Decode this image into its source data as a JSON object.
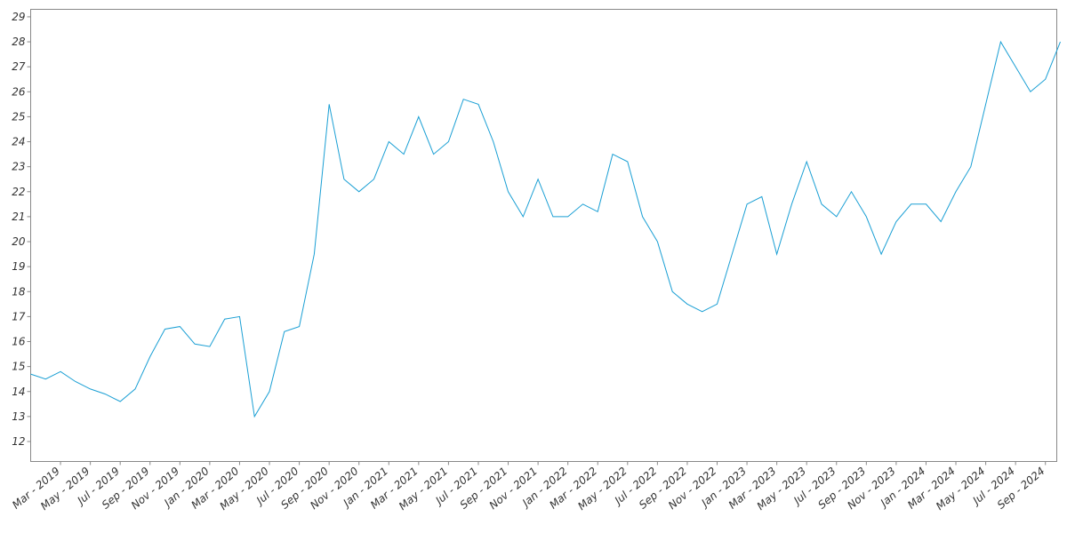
{
  "chart_data": {
    "type": "line",
    "x": [
      "2019-01",
      "2019-02",
      "2019-03",
      "2019-04",
      "2019-05",
      "2019-06",
      "2019-07",
      "2019-08",
      "2019-09",
      "2019-10",
      "2019-11",
      "2019-12",
      "2020-01",
      "2020-02",
      "2020-03",
      "2020-04",
      "2020-05",
      "2020-06",
      "2020-07",
      "2020-08",
      "2020-09",
      "2020-10",
      "2020-11",
      "2020-12",
      "2021-01",
      "2021-02",
      "2021-03",
      "2021-04",
      "2021-05",
      "2021-06",
      "2021-07",
      "2021-08",
      "2021-09",
      "2021-10",
      "2021-11",
      "2021-12",
      "2022-01",
      "2022-02",
      "2022-03",
      "2022-04",
      "2022-05",
      "2022-06",
      "2022-07",
      "2022-08",
      "2022-09",
      "2022-10",
      "2022-11",
      "2022-12",
      "2023-01",
      "2023-02",
      "2023-03",
      "2023-04",
      "2023-05",
      "2023-06",
      "2023-07",
      "2023-08",
      "2023-09",
      "2023-10",
      "2023-11",
      "2023-12",
      "2024-01",
      "2024-02",
      "2024-03",
      "2024-04",
      "2024-05",
      "2024-06",
      "2024-07",
      "2024-08",
      "2024-09",
      "2024-10"
    ],
    "series": [
      {
        "color": "#1a9fd4",
        "values": [
          14.7,
          14.5,
          14.8,
          14.4,
          14.1,
          13.9,
          13.6,
          14.1,
          15.4,
          16.5,
          16.6,
          15.9,
          15.8,
          16.9,
          17.0,
          13.0,
          14.0,
          16.4,
          16.6,
          19.5,
          25.5,
          22.5,
          22.0,
          22.5,
          24.0,
          23.5,
          25.0,
          23.5,
          24.0,
          25.7,
          25.5,
          24.0,
          22.0,
          21.0,
          22.5,
          21.0,
          21.0,
          21.5,
          21.2,
          23.5,
          23.2,
          21.0,
          20.0,
          18.0,
          17.5,
          17.2,
          17.5,
          19.5,
          21.5,
          21.8,
          19.5,
          21.5,
          23.2,
          21.5,
          21.0,
          22.0,
          21.0,
          19.5,
          20.8,
          21.5,
          21.5,
          20.8,
          22.0,
          23.0,
          25.5,
          28.0,
          27.0,
          26.0,
          26.5,
          28.0
        ]
      }
    ],
    "xlim": [
      "2019-01",
      "2024-10"
    ],
    "xticks": [
      {
        "value": "2019-03",
        "label": "Mar - 2019"
      },
      {
        "value": "2019-05",
        "label": "May - 2019"
      },
      {
        "value": "2019-07",
        "label": "Jul - 2019"
      },
      {
        "value": "2019-09",
        "label": "Sep - 2019"
      },
      {
        "value": "2019-11",
        "label": "Nov - 2019"
      },
      {
        "value": "2020-01",
        "label": "Jan - 2020"
      },
      {
        "value": "2020-03",
        "label": "Mar - 2020"
      },
      {
        "value": "2020-05",
        "label": "May - 2020"
      },
      {
        "value": "2020-07",
        "label": "Jul - 2020"
      },
      {
        "value": "2020-09",
        "label": "Sep - 2020"
      },
      {
        "value": "2020-11",
        "label": "Nov - 2020"
      },
      {
        "value": "2021-01",
        "label": "Jan - 2021"
      },
      {
        "value": "2021-03",
        "label": "Mar - 2021"
      },
      {
        "value": "2021-05",
        "label": "May - 2021"
      },
      {
        "value": "2021-07",
        "label": "Jul - 2021"
      },
      {
        "value": "2021-09",
        "label": "Sep - 2021"
      },
      {
        "value": "2021-11",
        "label": "Nov - 2021"
      },
      {
        "value": "2022-01",
        "label": "Jan - 2022"
      },
      {
        "value": "2022-03",
        "label": "Mar - 2022"
      },
      {
        "value": "2022-05",
        "label": "May - 2022"
      },
      {
        "value": "2022-07",
        "label": "Jul - 2022"
      },
      {
        "value": "2022-09",
        "label": "Sep - 2022"
      },
      {
        "value": "2022-11",
        "label": "Nov - 2022"
      },
      {
        "value": "2023-01",
        "label": "Jan - 2023"
      },
      {
        "value": "2023-03",
        "label": "Mar - 2023"
      },
      {
        "value": "2023-05",
        "label": "May - 2023"
      },
      {
        "value": "2023-07",
        "label": "Jul - 2023"
      },
      {
        "value": "2023-09",
        "label": "Sep - 2023"
      },
      {
        "value": "2023-11",
        "label": "Nov - 2023"
      },
      {
        "value": "2024-01",
        "label": "Jan - 2024"
      },
      {
        "value": "2024-03",
        "label": "Mar - 2024"
      },
      {
        "value": "2024-05",
        "label": "May - 2024"
      },
      {
        "value": "2024-07",
        "label": "Jul - 2024"
      },
      {
        "value": "2024-09",
        "label": "Sep - 2024"
      }
    ],
    "ylim": [
      11.2,
      29.3
    ],
    "yticks": [
      12,
      13,
      14,
      15,
      16,
      17,
      18,
      19,
      20,
      21,
      22,
      23,
      24,
      25,
      26,
      27,
      28,
      29
    ],
    "grid": false
  }
}
